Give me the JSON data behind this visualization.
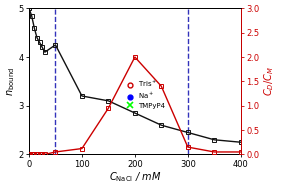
{
  "black_x": [
    0,
    5,
    10,
    15,
    20,
    25,
    30,
    50,
    100,
    150,
    200,
    250,
    300,
    350,
    400
  ],
  "black_y": [
    5.0,
    4.85,
    4.6,
    4.4,
    4.3,
    4.2,
    4.1,
    4.25,
    3.2,
    3.1,
    2.85,
    2.6,
    2.45,
    2.3,
    2.25
  ],
  "red_x": [
    0,
    5,
    10,
    15,
    20,
    25,
    30,
    50,
    100,
    150,
    200,
    250,
    300,
    350,
    400
  ],
  "red_y": [
    0.0,
    0.0,
    0.0,
    0.0,
    0.0,
    0.0,
    0.0,
    0.05,
    0.12,
    0.95,
    2.0,
    1.4,
    0.15,
    0.05,
    0.05
  ],
  "vline1_x": 50,
  "vline2_x": 300,
  "xlabel": "$C_\\mathrm{NaCl}$ / mM",
  "ylabel_left": "$n_\\mathrm{bound}$",
  "ylabel_right": "$C_D/C_M$",
  "xlim": [
    0,
    400
  ],
  "ylim_left": [
    2.0,
    5.0
  ],
  "ylim_right": [
    0.0,
    3.0
  ],
  "xticks": [
    0,
    100,
    200,
    300,
    400
  ],
  "yticks_left": [
    2,
    3,
    4,
    5
  ],
  "yticks_right": [
    0.0,
    0.5,
    1.0,
    1.5,
    2.0,
    2.5,
    3.0
  ],
  "legend_tris_label": "Tris$^+$",
  "legend_na_label": "Na$^+$",
  "legend_tmpyp4_label": "TMPyP4",
  "black_color": "#111111",
  "red_color": "#cc0000",
  "blue_dashed_color": "#3333bb",
  "bg_color": "#ffffff"
}
